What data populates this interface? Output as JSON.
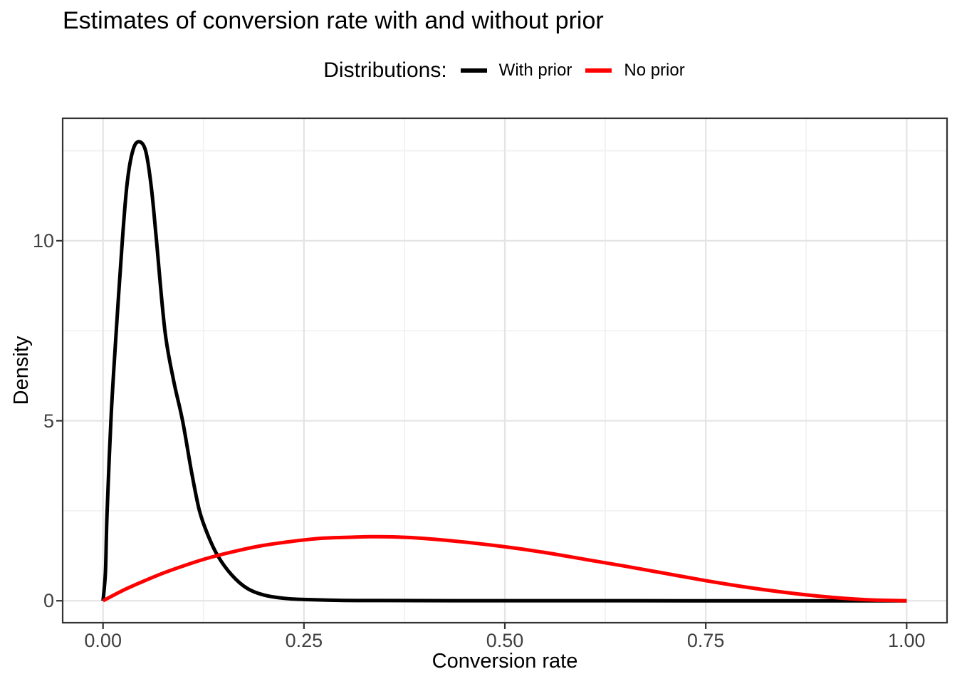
{
  "title": "Estimates of conversion rate with and without prior",
  "legend": {
    "title": "Distributions:",
    "items": [
      {
        "label": "With prior",
        "color": "#000000"
      },
      {
        "label": "No prior",
        "color": "#FF0000"
      }
    ]
  },
  "colors": {
    "with_prior": "#000000",
    "no_prior": "#FF0000",
    "panel_border": "#333333",
    "grid_major": "#E4E4E4",
    "grid_minor": "#F2F2F2",
    "axis_text": "#404040"
  },
  "chart_data": {
    "type": "line",
    "title": "Estimates of conversion rate with and without prior",
    "xlabel": "Conversion rate",
    "ylabel": "Density",
    "xlim": [
      -0.05,
      1.05
    ],
    "ylim": [
      -0.6,
      13.4
    ],
    "grid": true,
    "legend_position": "top-center",
    "x_ticks": {
      "values": [
        0,
        0.25,
        0.5,
        0.75,
        1.0
      ],
      "labels": [
        "0.00",
        "0.25",
        "0.50",
        "0.75",
        "1.00"
      ]
    },
    "y_ticks": {
      "values": [
        0,
        5,
        10
      ],
      "labels": [
        "0",
        "5",
        "10"
      ]
    },
    "x_minor": [
      0.125,
      0.375,
      0.625,
      0.875
    ],
    "y_minor": [
      2.5,
      7.5,
      12.5
    ],
    "series": [
      {
        "name": "With prior",
        "color": "#000000",
        "points": [
          [
            0.0,
            0.0
          ],
          [
            0.003,
            0.8
          ],
          [
            0.005,
            2.4
          ],
          [
            0.01,
            5.1
          ],
          [
            0.0165,
            7.5
          ],
          [
            0.024,
            10.0
          ],
          [
            0.03,
            11.6
          ],
          [
            0.037,
            12.5
          ],
          [
            0.0445,
            12.75
          ],
          [
            0.053,
            12.5
          ],
          [
            0.06,
            11.5
          ],
          [
            0.0665,
            10.0
          ],
          [
            0.077,
            7.5
          ],
          [
            0.088,
            6.1
          ],
          [
            0.099,
            5.0
          ],
          [
            0.11,
            3.6
          ],
          [
            0.12,
            2.5
          ],
          [
            0.131,
            1.8
          ],
          [
            0.143,
            1.24
          ],
          [
            0.16,
            0.72
          ],
          [
            0.179,
            0.35
          ],
          [
            0.2,
            0.16
          ],
          [
            0.225,
            0.07
          ],
          [
            0.25,
            0.035
          ],
          [
            0.3,
            0.01
          ],
          [
            0.35,
            0.005
          ],
          [
            0.45,
            0.002
          ],
          [
            0.6,
            0.001
          ],
          [
            0.8,
            0.0
          ],
          [
            1.0,
            0.0
          ]
        ]
      },
      {
        "name": "No prior",
        "color": "#FF0000",
        "points": [
          [
            0.0,
            0.0
          ],
          [
            0.025,
            0.29
          ],
          [
            0.05,
            0.54
          ],
          [
            0.075,
            0.77
          ],
          [
            0.1,
            0.97
          ],
          [
            0.125,
            1.15
          ],
          [
            0.15,
            1.3
          ],
          [
            0.175,
            1.43
          ],
          [
            0.2,
            1.54
          ],
          [
            0.225,
            1.62
          ],
          [
            0.25,
            1.69
          ],
          [
            0.275,
            1.74
          ],
          [
            0.3,
            1.76
          ],
          [
            0.333,
            1.78
          ],
          [
            0.367,
            1.77
          ],
          [
            0.4,
            1.73
          ],
          [
            0.45,
            1.63
          ],
          [
            0.5,
            1.5
          ],
          [
            0.55,
            1.34
          ],
          [
            0.6,
            1.15
          ],
          [
            0.65,
            0.96
          ],
          [
            0.7,
            0.76
          ],
          [
            0.75,
            0.56
          ],
          [
            0.8,
            0.38
          ],
          [
            0.85,
            0.23
          ],
          [
            0.9,
            0.11
          ],
          [
            0.95,
            0.03
          ],
          [
            1.0,
            0.0
          ]
        ]
      }
    ]
  }
}
